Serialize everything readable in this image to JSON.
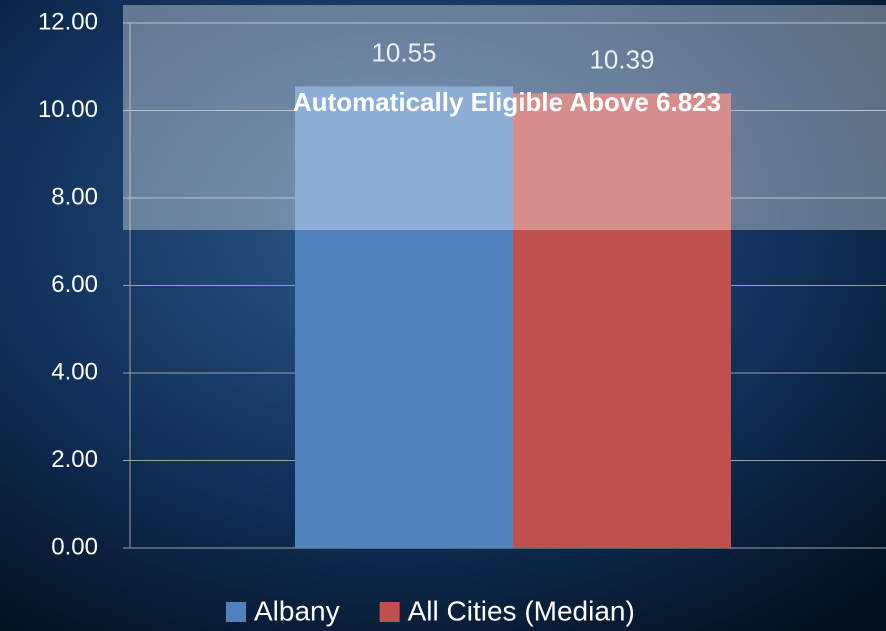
{
  "chart_data": {
    "type": "bar",
    "annotation": "Automatically Eligible Above 6.823",
    "categories": [
      null
    ],
    "series": [
      {
        "name": "Albany",
        "color": "#4f81bd",
        "values": [
          10.55
        ]
      },
      {
        "name": "All Cities (Median)",
        "color": "#c0504d",
        "values": [
          10.39
        ]
      }
    ],
    "ylim": [
      0,
      12
    ],
    "yticks": [
      {
        "value": 0,
        "label": "0.00"
      },
      {
        "value": 2,
        "label": "2.00"
      },
      {
        "value": 4,
        "label": "4.00"
      },
      {
        "value": 6,
        "label": "6.00"
      },
      {
        "value": 8,
        "label": "8.00"
      },
      {
        "value": 10,
        "label": "10.00"
      },
      {
        "value": 12,
        "label": "12.00"
      }
    ],
    "grid": true,
    "legend": "bottom"
  }
}
